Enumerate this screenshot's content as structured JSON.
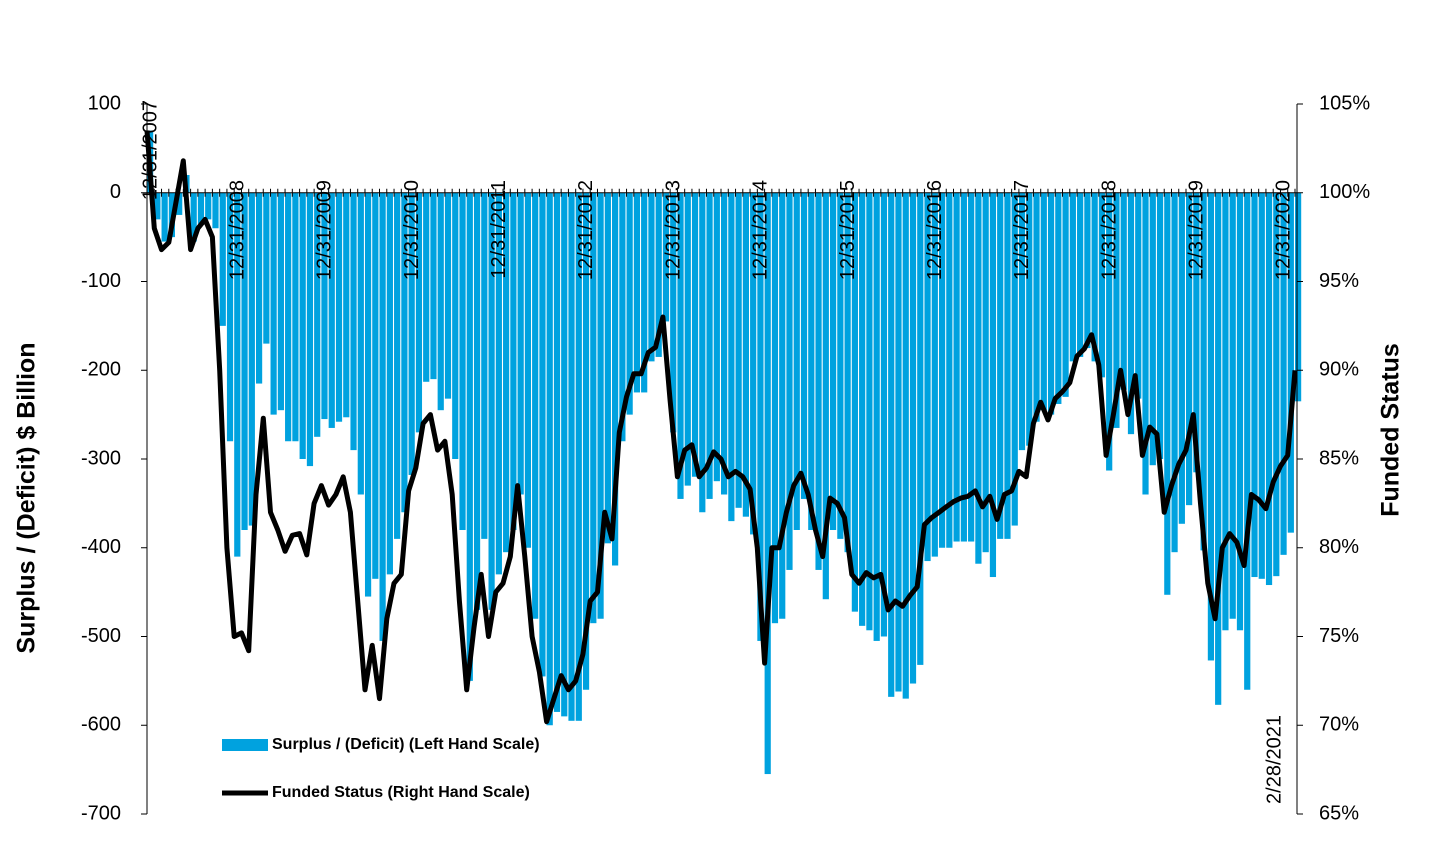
{
  "chart_data": {
    "type": "combo",
    "y_label": "Surplus / (Deficit) $ Billion",
    "y2_label": "Funded Status",
    "categories": [
      "12/31/2007",
      null,
      null,
      null,
      null,
      null,
      null,
      null,
      null,
      null,
      null,
      null,
      "12/31/2008",
      null,
      null,
      null,
      null,
      null,
      null,
      null,
      null,
      null,
      null,
      null,
      "12/31/2009",
      null,
      null,
      null,
      null,
      null,
      null,
      null,
      null,
      null,
      null,
      null,
      "12/31/2010",
      null,
      null,
      null,
      null,
      null,
      null,
      null,
      null,
      null,
      null,
      null,
      "12/31/2011",
      null,
      null,
      null,
      null,
      null,
      null,
      null,
      null,
      null,
      null,
      null,
      "12/31/2012",
      null,
      null,
      null,
      null,
      null,
      null,
      null,
      null,
      null,
      null,
      null,
      "12/31/2013",
      null,
      null,
      null,
      null,
      null,
      null,
      null,
      null,
      null,
      null,
      null,
      "12/31/2014",
      null,
      null,
      null,
      null,
      null,
      null,
      null,
      null,
      null,
      null,
      null,
      "12/31/2015",
      null,
      null,
      null,
      null,
      null,
      null,
      null,
      null,
      null,
      null,
      null,
      "12/31/2016",
      null,
      null,
      null,
      null,
      null,
      null,
      null,
      null,
      null,
      null,
      null,
      "12/31/2017",
      null,
      null,
      null,
      null,
      null,
      null,
      null,
      null,
      null,
      null,
      null,
      "12/31/2018",
      null,
      null,
      null,
      null,
      null,
      null,
      null,
      null,
      null,
      null,
      null,
      "12/31/2019",
      null,
      null,
      null,
      null,
      null,
      null,
      null,
      null,
      null,
      null,
      null,
      "12/31/2020",
      null,
      "2/28/2021"
    ],
    "series": [
      {
        "name": "Surplus / (Deficit) (Left Hand Scale)",
        "kind": "bar",
        "color": "#00a2df",
        "values": [
          70,
          -30,
          -55,
          -50,
          -25,
          20,
          -55,
          -35,
          -30,
          -40,
          -150,
          -280,
          -410,
          -380,
          -375,
          -215,
          -170,
          -250,
          -245,
          -280,
          -280,
          -300,
          -308,
          -275,
          -255,
          -265,
          -258,
          -253,
          -290,
          -340,
          -455,
          -435,
          -505,
          -430,
          -390,
          -360,
          -318,
          -270,
          -213,
          -210,
          -245,
          -232,
          -300,
          -380,
          -550,
          -470,
          -390,
          -470,
          -430,
          -405,
          -380,
          -340,
          -400,
          -480,
          -545,
          -600,
          -585,
          -590,
          -595,
          -595,
          -560,
          -485,
          -480,
          -395,
          -420,
          -280,
          -250,
          -225,
          -225,
          -190,
          -185,
          -145,
          -270,
          -345,
          -330,
          -320,
          -360,
          -345,
          -325,
          -340,
          -370,
          -355,
          -365,
          -385,
          -505,
          -655,
          -485,
          -480,
          -425,
          -380,
          -345,
          -380,
          -425,
          -458,
          -380,
          -390,
          -405,
          -472,
          -488,
          -493,
          -505,
          -500,
          -568,
          -562,
          -570,
          -553,
          -532,
          -415,
          -410,
          -400,
          -400,
          -393,
          -393,
          -393,
          -418,
          -405,
          -433,
          -390,
          -390,
          -375,
          -290,
          -285,
          -258,
          -245,
          -250,
          -238,
          -230,
          -190,
          -185,
          -175,
          -190,
          -208,
          -313,
          -265,
          -222,
          -272,
          -232,
          -340,
          -307,
          -300,
          -453,
          -405,
          -373,
          -352,
          -315,
          -403,
          -527,
          -577,
          -493,
          -480,
          -493,
          -560,
          -433,
          -435,
          -442,
          -432,
          -408,
          -383,
          -235
        ]
      },
      {
        "name": "Funded Status (Right Hand Scale)",
        "kind": "line",
        "color": "#000000",
        "axis": "y2",
        "values": [
          103.5,
          98,
          96.8,
          97.2,
          99.5,
          101.8,
          96.8,
          98,
          98.5,
          97.5,
          90,
          80,
          75,
          75.2,
          74.2,
          83,
          87.3,
          82,
          81,
          79.8,
          80.7,
          80.8,
          79.6,
          82.5,
          83.5,
          82.4,
          83,
          84,
          82,
          77,
          72,
          74.5,
          71.5,
          76,
          78,
          78.5,
          83.2,
          84.5,
          87,
          87.5,
          85.5,
          86,
          83,
          77,
          72,
          75.5,
          78.5,
          75,
          77.5,
          78,
          79.5,
          83.5,
          79.5,
          75,
          73,
          70.2,
          71.5,
          72.8,
          72,
          72.5,
          74,
          77,
          77.5,
          82,
          80.5,
          86.5,
          88.5,
          89.8,
          89.8,
          91,
          91.3,
          93,
          88.3,
          84,
          85.5,
          85.8,
          84,
          84.5,
          85.4,
          85,
          84,
          84.3,
          84,
          83.3,
          80,
          73.5,
          80,
          80,
          82,
          83.5,
          84.2,
          83,
          81,
          79.5,
          82.8,
          82.5,
          81.7,
          78.5,
          78,
          78.6,
          78.3,
          78.5,
          76.5,
          77,
          76.7,
          77.3,
          77.8,
          81.3,
          81.7,
          82,
          82.3,
          82.6,
          82.8,
          82.9,
          83.2,
          82.3,
          82.9,
          81.6,
          83,
          83.2,
          84.3,
          84,
          87,
          88.2,
          87.2,
          88.4,
          88.8,
          89.3,
          90.8,
          91.2,
          92,
          90.3,
          85.2,
          87.5,
          90,
          87.5,
          89.7,
          85.2,
          86.8,
          86.4,
          82,
          83.5,
          84.7,
          85.5,
          87.5,
          82.5,
          78,
          76,
          80,
          80.8,
          80.3,
          79,
          83,
          82.7,
          82.2,
          83.7,
          84.6,
          85.2,
          90
        ]
      }
    ],
    "ylim": [
      -700,
      100
    ],
    "yticks": [
      -700,
      -600,
      -500,
      -400,
      -300,
      -200,
      -100,
      0,
      100
    ],
    "y2lim": [
      65,
      105
    ],
    "y2ticks": [
      {
        "value": 65,
        "label": "65%"
      },
      {
        "value": 70,
        "label": "70%"
      },
      {
        "value": 75,
        "label": "75%"
      },
      {
        "value": 80,
        "label": "80%"
      },
      {
        "value": 85,
        "label": "85%"
      },
      {
        "value": 90,
        "label": "90%"
      },
      {
        "value": 95,
        "label": "95%"
      },
      {
        "value": 100,
        "label": "100%"
      },
      {
        "value": 105,
        "label": "105%"
      }
    ]
  }
}
